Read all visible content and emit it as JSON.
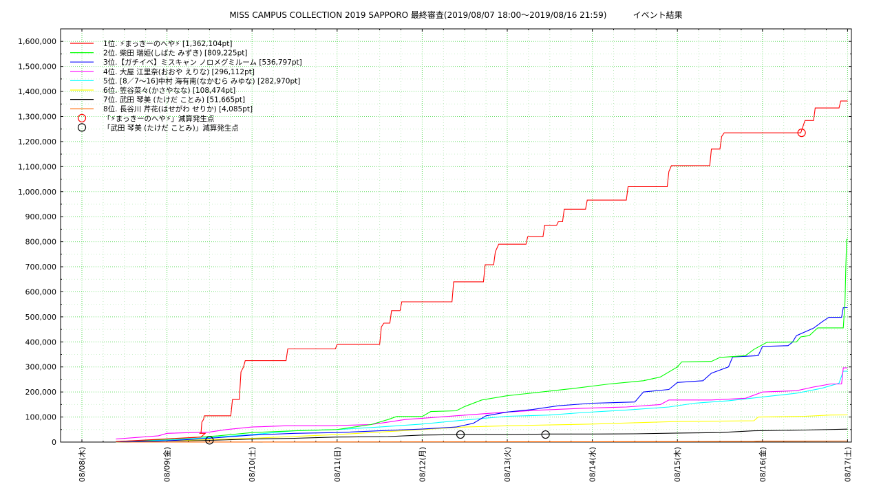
{
  "chart_data": {
    "type": "line",
    "title": "MISS CAMPUS COLLECTION 2019 SAPPORO 最終審査(2019/08/07 18:00〜2019/08/16 21:59)          イベント結果",
    "y_ticks": [
      "0",
      "100,000",
      "200,000",
      "300,000",
      "400,000",
      "500,000",
      "600,000",
      "700,000",
      "800,000",
      "900,000",
      "1,000,000",
      "1,100,000",
      "1,200,000",
      "1,300,000",
      "1,400,000",
      "1,500,000",
      "1,600,000"
    ],
    "ylim": [
      0,
      1650000
    ],
    "x_ticks": [
      "08/08(木)",
      "08/09(金)",
      "08/10(土)",
      "08/11(日)",
      "08/12(月)",
      "08/13(火)",
      "08/14(水)",
      "08/15(木)",
      "08/16(金)",
      "08/17(土)"
    ],
    "xlim": [
      0,
      9.1
    ],
    "grid": true,
    "legend_position": "top-left",
    "series": [
      {
        "name": "1位. ⚡まっきーのへや⚡ [1,362,104pt]",
        "color": "#ff0000",
        "points": [
          [
            0.4,
            2000
          ],
          [
            1.4,
            20000
          ],
          [
            1.45,
            35000
          ],
          [
            1.4,
            35000
          ],
          [
            1.38,
            35000
          ],
          [
            1.4,
            35000
          ],
          [
            1.41,
            80000
          ],
          [
            1.43,
            90000
          ],
          [
            1.44,
            105000
          ],
          [
            1.75,
            105000
          ],
          [
            1.77,
            170000
          ],
          [
            1.85,
            170000
          ],
          [
            1.87,
            280000
          ],
          [
            1.9,
            300000
          ],
          [
            1.92,
            325000
          ],
          [
            2.4,
            325000
          ],
          [
            2.42,
            372000
          ],
          [
            2.98,
            372000
          ],
          [
            3.0,
            390000
          ],
          [
            3.5,
            390000
          ],
          [
            3.52,
            460000
          ],
          [
            3.55,
            475000
          ],
          [
            3.62,
            475000
          ],
          [
            3.64,
            525000
          ],
          [
            3.74,
            525000
          ],
          [
            3.76,
            560000
          ],
          [
            4.35,
            560000
          ],
          [
            4.37,
            640000
          ],
          [
            4.72,
            640000
          ],
          [
            4.74,
            708000
          ],
          [
            4.84,
            708000
          ],
          [
            4.86,
            760000
          ],
          [
            4.9,
            790000
          ],
          [
            5.22,
            790000
          ],
          [
            5.24,
            820000
          ],
          [
            5.42,
            820000
          ],
          [
            5.44,
            866000
          ],
          [
            5.58,
            866000
          ],
          [
            5.6,
            880000
          ],
          [
            5.65,
            880000
          ],
          [
            5.67,
            930000
          ],
          [
            5.92,
            930000
          ],
          [
            5.94,
            966000
          ],
          [
            6.4,
            966000
          ],
          [
            6.42,
            1020000
          ],
          [
            6.88,
            1020000
          ],
          [
            6.9,
            1080000
          ],
          [
            6.93,
            1104000
          ],
          [
            7.38,
            1104000
          ],
          [
            7.4,
            1170000
          ],
          [
            7.5,
            1170000
          ],
          [
            7.52,
            1220000
          ],
          [
            7.55,
            1235000
          ],
          [
            8.45,
            1235000
          ],
          [
            8.5,
            1284000
          ],
          [
            8.6,
            1284000
          ],
          [
            8.62,
            1334000
          ],
          [
            8.9,
            1334000
          ],
          [
            8.92,
            1362104
          ],
          [
            9.0,
            1362104
          ]
        ]
      },
      {
        "name": "2位. 柴田 瑞姫(しばた みずき) [809,225pt]",
        "color": "#00ff00",
        "points": [
          [
            0.4,
            2000
          ],
          [
            0.8,
            8000
          ],
          [
            1.2,
            15000
          ],
          [
            1.6,
            25000
          ],
          [
            2.0,
            38000
          ],
          [
            2.5,
            45000
          ],
          [
            3.0,
            50000
          ],
          [
            3.4,
            70000
          ],
          [
            3.6,
            90000
          ],
          [
            3.7,
            102000
          ],
          [
            4.0,
            102000
          ],
          [
            4.1,
            122000
          ],
          [
            4.4,
            125000
          ],
          [
            4.5,
            142000
          ],
          [
            4.7,
            168000
          ],
          [
            5.0,
            185000
          ],
          [
            5.4,
            200000
          ],
          [
            5.8,
            215000
          ],
          [
            6.2,
            232000
          ],
          [
            6.6,
            245000
          ],
          [
            6.8,
            260000
          ],
          [
            7.0,
            300000
          ],
          [
            7.05,
            320000
          ],
          [
            7.4,
            322000
          ],
          [
            7.5,
            338000
          ],
          [
            7.8,
            345000
          ],
          [
            7.9,
            370000
          ],
          [
            8.05,
            398000
          ],
          [
            8.4,
            400000
          ],
          [
            8.45,
            420000
          ],
          [
            8.55,
            425000
          ],
          [
            8.65,
            456000
          ],
          [
            8.95,
            456000
          ],
          [
            8.97,
            560000
          ],
          [
            8.98,
            700000
          ],
          [
            8.99,
            809225
          ],
          [
            9.0,
            809225
          ]
        ]
      },
      {
        "name": "3位.【ガチイベ】ミスキャン ノロメグミルーム [536,797pt]",
        "color": "#0000ff",
        "points": [
          [
            0.4,
            1000
          ],
          [
            1.0,
            5000
          ],
          [
            1.5,
            15000
          ],
          [
            2.0,
            28000
          ],
          [
            2.5,
            35000
          ],
          [
            3.0,
            38000
          ],
          [
            3.5,
            45000
          ],
          [
            4.0,
            52000
          ],
          [
            4.4,
            60000
          ],
          [
            4.6,
            75000
          ],
          [
            4.75,
            105000
          ],
          [
            5.0,
            120000
          ],
          [
            5.3,
            130000
          ],
          [
            5.6,
            145000
          ],
          [
            6.0,
            155000
          ],
          [
            6.5,
            160000
          ],
          [
            6.6,
            200000
          ],
          [
            6.9,
            210000
          ],
          [
            7.0,
            238000
          ],
          [
            7.3,
            245000
          ],
          [
            7.4,
            275000
          ],
          [
            7.6,
            300000
          ],
          [
            7.65,
            340000
          ],
          [
            7.95,
            345000
          ],
          [
            8.0,
            382000
          ],
          [
            8.3,
            385000
          ],
          [
            8.35,
            398000
          ],
          [
            8.4,
            425000
          ],
          [
            8.6,
            455000
          ],
          [
            8.7,
            480000
          ],
          [
            8.78,
            498000
          ],
          [
            8.93,
            498000
          ],
          [
            8.95,
            536797
          ],
          [
            9.0,
            536797
          ]
        ]
      },
      {
        "name": "4位. 大屋 江里奈(おおや えりな) [296,112pt]",
        "color": "#ff00ff",
        "points": [
          [
            0.4,
            12000
          ],
          [
            0.9,
            25000
          ],
          [
            1.0,
            35000
          ],
          [
            1.5,
            40000
          ],
          [
            1.7,
            50000
          ],
          [
            2.0,
            60000
          ],
          [
            2.4,
            65000
          ],
          [
            2.9,
            65000
          ],
          [
            3.4,
            70000
          ],
          [
            3.6,
            80000
          ],
          [
            3.8,
            90000
          ],
          [
            4.0,
            95000
          ],
          [
            4.6,
            110000
          ],
          [
            5.0,
            120000
          ],
          [
            5.4,
            128000
          ],
          [
            5.9,
            135000
          ],
          [
            6.4,
            140000
          ],
          [
            6.8,
            150000
          ],
          [
            6.9,
            168000
          ],
          [
            7.4,
            168000
          ],
          [
            7.8,
            175000
          ],
          [
            8.0,
            200000
          ],
          [
            8.4,
            205000
          ],
          [
            8.6,
            220000
          ],
          [
            8.8,
            232000
          ],
          [
            8.93,
            232000
          ],
          [
            8.95,
            296112
          ],
          [
            9.0,
            296112
          ]
        ]
      },
      {
        "name": "5位. [8／7〜16]中村 海有南(なかむら みゆな) [282,970pt]",
        "color": "#00ffff",
        "points": [
          [
            0.4,
            1000
          ],
          [
            1.0,
            8000
          ],
          [
            1.5,
            18000
          ],
          [
            2.0,
            30000
          ],
          [
            2.5,
            45000
          ],
          [
            3.0,
            50000
          ],
          [
            3.5,
            60000
          ],
          [
            4.0,
            72000
          ],
          [
            4.5,
            88000
          ],
          [
            5.0,
            103000
          ],
          [
            5.5,
            108000
          ],
          [
            5.9,
            118000
          ],
          [
            6.4,
            128000
          ],
          [
            6.9,
            140000
          ],
          [
            7.2,
            155000
          ],
          [
            7.6,
            165000
          ],
          [
            8.0,
            180000
          ],
          [
            8.4,
            195000
          ],
          [
            8.7,
            215000
          ],
          [
            8.9,
            235000
          ],
          [
            8.95,
            282970
          ],
          [
            9.0,
            282970
          ]
        ]
      },
      {
        "name": "6位. 笠谷菜々(かさやなな) [108,474pt]",
        "color": "#ffff00",
        "points": [
          [
            0.4,
            500
          ],
          [
            1.0,
            5000
          ],
          [
            2.0,
            15000
          ],
          [
            3.0,
            30000
          ],
          [
            4.0,
            50000
          ],
          [
            4.5,
            60000
          ],
          [
            5.0,
            65000
          ],
          [
            6.0,
            72000
          ],
          [
            7.0,
            82000
          ],
          [
            7.9,
            85000
          ],
          [
            7.95,
            100000
          ],
          [
            8.5,
            103000
          ],
          [
            8.8,
            108000
          ],
          [
            9.0,
            108474
          ]
        ]
      },
      {
        "name": "7位. 武田 琴美 (たけだ ことみ) [51,665pt]",
        "color": "#000000",
        "points": [
          [
            0.4,
            300
          ],
          [
            1.0,
            4000
          ],
          [
            1.5,
            7000
          ],
          [
            2.0,
            12000
          ],
          [
            2.5,
            15000
          ],
          [
            3.0,
            20000
          ],
          [
            3.6,
            22000
          ],
          [
            4.0,
            28000
          ],
          [
            4.5,
            30000
          ],
          [
            5.0,
            30000
          ],
          [
            5.5,
            32000
          ],
          [
            6.0,
            32000
          ],
          [
            6.5,
            33000
          ],
          [
            7.0,
            36000
          ],
          [
            7.5,
            38000
          ],
          [
            7.9,
            45000
          ],
          [
            8.5,
            48000
          ],
          [
            9.0,
            51665
          ]
        ]
      },
      {
        "name": "8位. 長谷川 芹花(はせがわ せりか) [4,085pt]",
        "color": "#ff6600",
        "points": [
          [
            0.4,
            0
          ],
          [
            2.0,
            200
          ],
          [
            4.0,
            800
          ],
          [
            6.0,
            1500
          ],
          [
            7.0,
            2000
          ],
          [
            7.9,
            2500
          ],
          [
            8.0,
            3500
          ],
          [
            9.0,
            4085
          ]
        ]
      }
    ],
    "annotations": [
      {
        "name": "「⚡まっきーのへや⚡」減算発生点",
        "color": "#ff0000",
        "points": [
          [
            8.46,
            1235000
          ]
        ]
      },
      {
        "name": "「武田 琴美 (たけだ ことみ)」減算発生点",
        "color": "#000000",
        "points": [
          [
            1.5,
            7000
          ],
          [
            4.45,
            30000
          ],
          [
            5.45,
            30000
          ]
        ]
      }
    ]
  }
}
